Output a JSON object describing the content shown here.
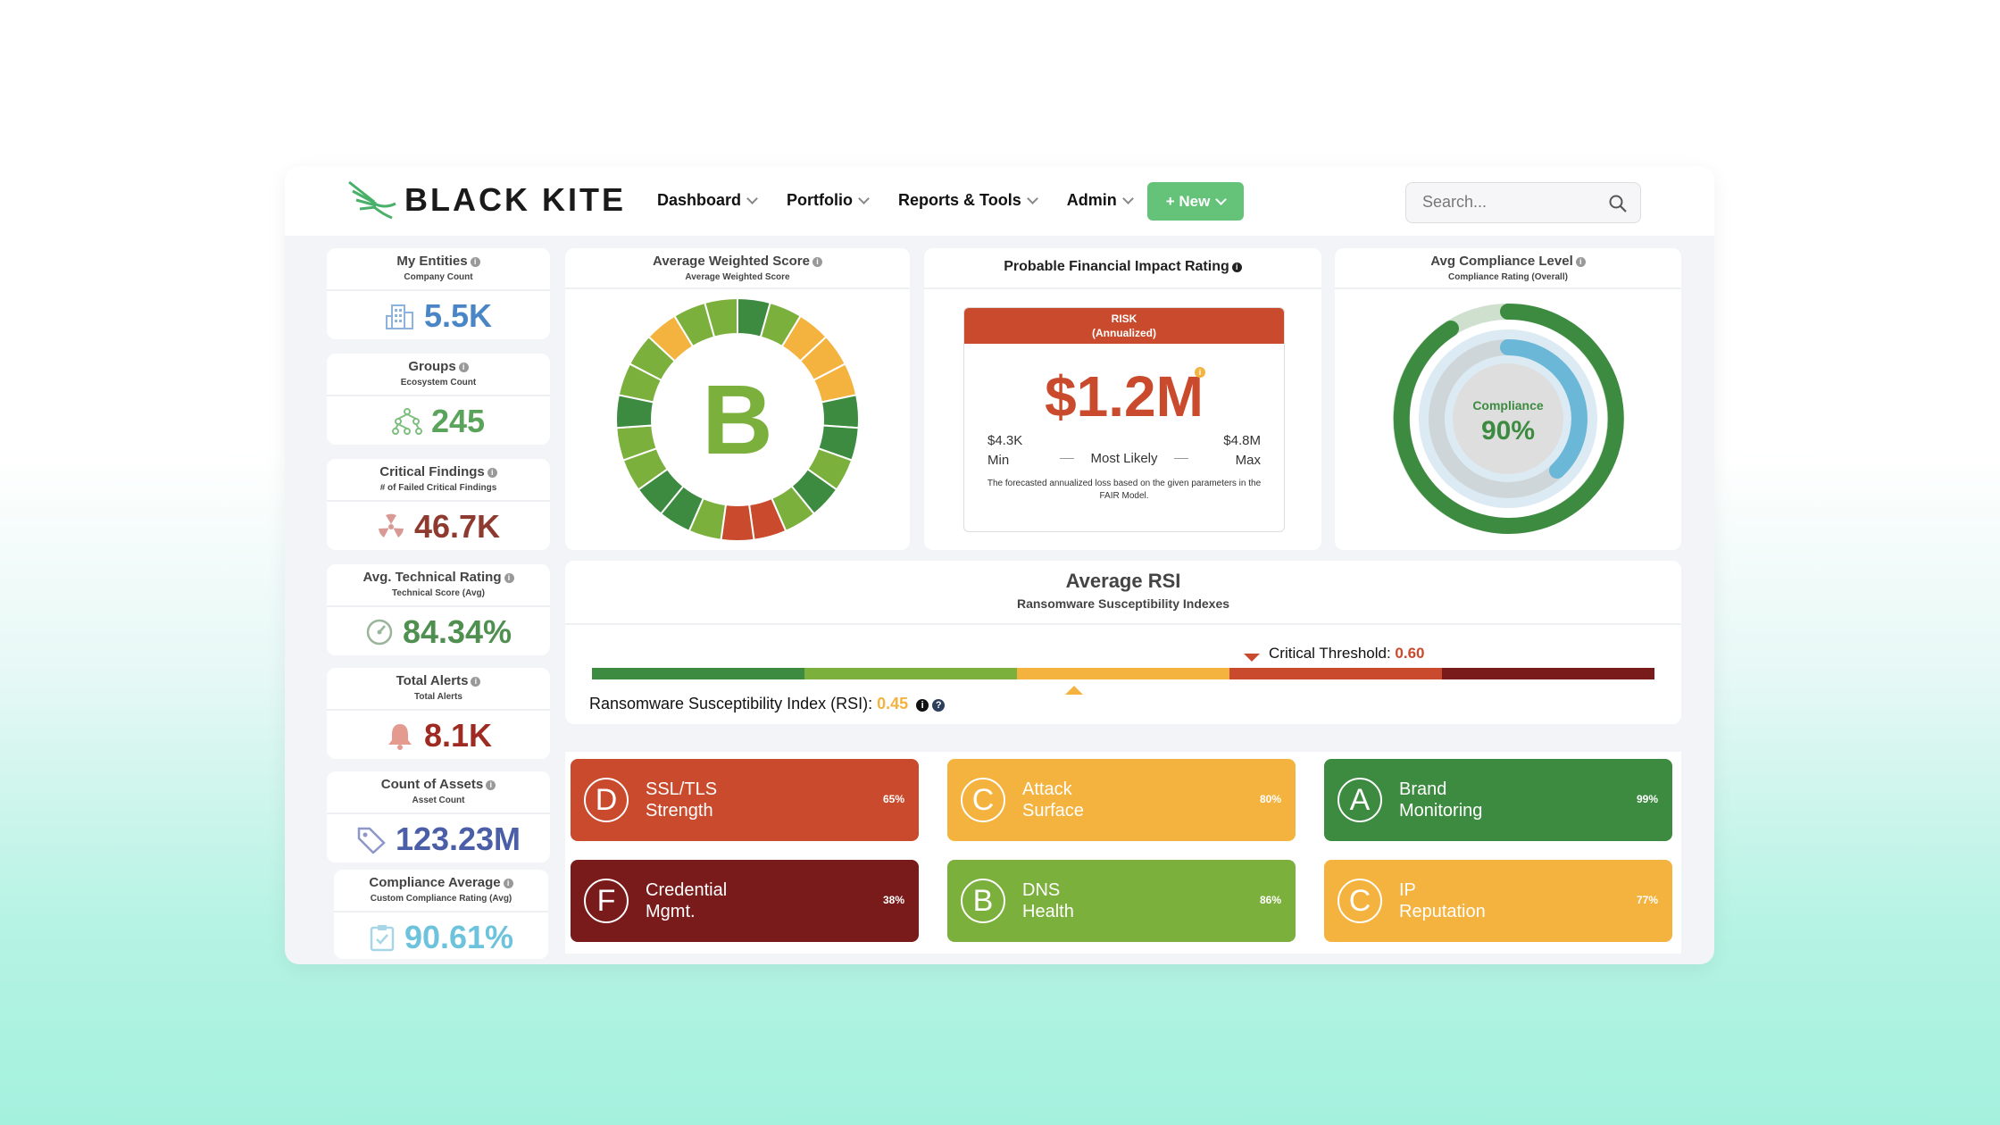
{
  "app": {
    "brand": "BLACK KITE"
  },
  "nav": {
    "items": [
      "Dashboard",
      "Portfolio",
      "Reports & Tools",
      "Admin"
    ],
    "new_label": "+ New"
  },
  "search": {
    "placeholder": "Search..."
  },
  "kpis": [
    {
      "title": "My Entities",
      "sub": "Company Count",
      "value": "5.5K",
      "color": "#4a86c5",
      "icon": "building-icon"
    },
    {
      "title": "Groups",
      "sub": "Ecosystem Count",
      "value": "245",
      "color": "#5aa35a",
      "icon": "hierarchy-icon"
    },
    {
      "title": "Critical Findings",
      "sub": "# of Failed Critical Findings",
      "value": "46.7K",
      "color": "#8e3a2f",
      "icon": "radiation-icon"
    },
    {
      "title": "Avg. Technical Rating",
      "sub": "Technical Score (Avg)",
      "value": "84.34%",
      "color": "#4f8f4f",
      "icon": "gauge-icon"
    },
    {
      "title": "Total Alerts",
      "sub": "Total Alerts",
      "value": "8.1K",
      "color": "#9e2a22",
      "icon": "bell-icon"
    },
    {
      "title": "Count of Assets",
      "sub": "Asset Count",
      "value": "123.23M",
      "color": "#4b5ea8",
      "icon": "tag-icon"
    },
    {
      "title": "Compliance Average",
      "sub": "Custom Compliance Rating (Avg)",
      "value": "90.61%",
      "color": "#6ec3dc",
      "icon": "clipboard-icon"
    }
  ],
  "weighted_score": {
    "title": "Average Weighted Score",
    "sub": "Average Weighted Score",
    "grade": "B"
  },
  "financial": {
    "title": "Probable Financial Impact Rating",
    "risk_line1": "RISK",
    "risk_line2": "(Annualized)",
    "value": "$1.2M",
    "min_value": "$4.3K",
    "min_label": "Min",
    "max_value": "$4.8M",
    "max_label": "Max",
    "likely_label": "Most Likely",
    "note": "The forecasted annualized loss based on the given parameters in the FAIR Model."
  },
  "compliance": {
    "title": "Avg Compliance Level",
    "sub": "Compliance Rating (Overall)",
    "label": "Compliance",
    "value": "90%"
  },
  "rsi": {
    "title": "Average RSI",
    "sub": "Ransomware Susceptibility Indexes",
    "threshold_label": "Critical Threshold:",
    "threshold_value": "0.60",
    "index_label": "Ransomware Susceptibility Index (RSI):",
    "index_value": "0.45",
    "scale_colors": [
      "#3d8b40",
      "#7cb03d",
      "#f4b33f",
      "#c94a2c",
      "#7a1b1b"
    ]
  },
  "tiles": [
    {
      "grade": "D",
      "line1": "SSL/TLS",
      "line2": "Strength",
      "pct": "65%",
      "color": "#c94a2c"
    },
    {
      "grade": "C",
      "line1": "Attack",
      "line2": "Surface",
      "pct": "80%",
      "color": "#f4b33f"
    },
    {
      "grade": "A",
      "line1": "Brand",
      "line2": "Monitoring",
      "pct": "99%",
      "color": "#3d8b40"
    },
    {
      "grade": "F",
      "line1": "Credential",
      "line2": "Mgmt.",
      "pct": "38%",
      "color": "#7a1b1b"
    },
    {
      "grade": "B",
      "line1": "DNS",
      "line2": "Health",
      "pct": "86%",
      "color": "#7cb03d"
    },
    {
      "grade": "C",
      "line1": "IP",
      "line2": "Reputation",
      "pct": "77%",
      "color": "#f4b33f"
    }
  ]
}
